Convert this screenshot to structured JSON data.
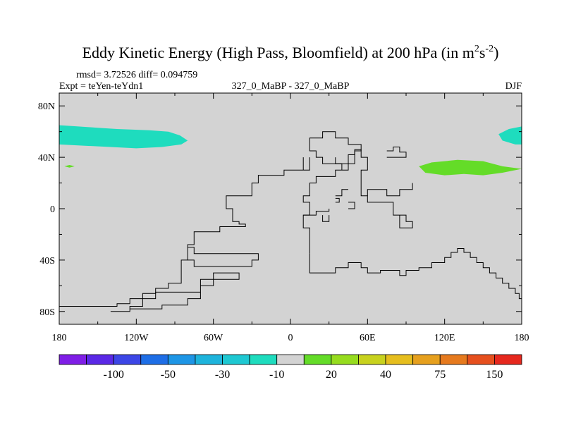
{
  "title": {
    "text": "Eddy Kinetic Energy (High Pass, Bloomfield) at 200 hPa (in m",
    "unit_sup1": "2",
    "unit_mid": "s",
    "unit_sup2": "-2",
    "close": ")"
  },
  "stats": "rmsd= 3.72526 diff= 0.094759",
  "expt": "Expt = teYen-teYdn1",
  "case": "327_0_MaBP - 327_0_MaBP",
  "season": "DJF",
  "map": {
    "land_color": "#d3d3d3",
    "coastline_color": "#000000",
    "lat_ticks": [
      {
        "label": "80N",
        "value": 80
      },
      {
        "label": "40N",
        "value": 40
      },
      {
        "label": "0",
        "value": 0
      },
      {
        "label": "40S",
        "value": -40
      },
      {
        "label": "80S",
        "value": -80
      }
    ],
    "lon_ticks": [
      {
        "label": "180",
        "value": -180
      },
      {
        "label": "120W",
        "value": -120
      },
      {
        "label": "60W",
        "value": -60
      },
      {
        "label": "0",
        "value": 0
      },
      {
        "label": "60E",
        "value": 60
      },
      {
        "label": "120E",
        "value": 120
      },
      {
        "label": "180",
        "value": 180
      }
    ],
    "fields": [
      {
        "name": "north-pacific-negative",
        "color": "#1edcbe",
        "points": [
          [
            -180,
            65
          ],
          [
            -165,
            64
          ],
          [
            -150,
            63
          ],
          [
            -135,
            62
          ],
          [
            -110,
            61
          ],
          [
            -95,
            60
          ],
          [
            -86,
            57
          ],
          [
            -80,
            53
          ],
          [
            -85,
            50
          ],
          [
            -100,
            48
          ],
          [
            -120,
            47
          ],
          [
            -140,
            48
          ],
          [
            -160,
            49
          ],
          [
            -180,
            50
          ]
        ]
      },
      {
        "name": "small-positive-spot",
        "color": "#64dc28",
        "points": [
          [
            -172,
            34
          ],
          [
            -168,
            33
          ],
          [
            -172,
            32
          ],
          [
            -176,
            33
          ]
        ]
      },
      {
        "name": "west-pacific-positive",
        "color": "#64dc28",
        "points": [
          [
            100,
            33
          ],
          [
            110,
            36
          ],
          [
            130,
            38
          ],
          [
            150,
            37
          ],
          [
            165,
            33
          ],
          [
            180,
            31
          ],
          [
            165,
            28
          ],
          [
            150,
            26
          ],
          [
            135,
            27
          ],
          [
            120,
            26
          ],
          [
            105,
            28
          ]
        ]
      },
      {
        "name": "east-edge-negative",
        "color": "#1edcbe",
        "points": [
          [
            180,
            64
          ],
          [
            170,
            62
          ],
          [
            162,
            58
          ],
          [
            165,
            53
          ],
          [
            175,
            50
          ],
          [
            180,
            50
          ]
        ]
      }
    ],
    "coastlines": [
      [
        [
          -180,
          -76
        ],
        [
          -135,
          -76
        ],
        [
          -135,
          -74
        ],
        [
          -125,
          -74
        ],
        [
          -125,
          -70
        ],
        [
          -115,
          -70
        ],
        [
          -115,
          -66
        ],
        [
          -105,
          -66
        ],
        [
          -105,
          -62
        ],
        [
          -95,
          -62
        ],
        [
          -95,
          -58
        ],
        [
          -85,
          -58
        ],
        [
          -85,
          -40
        ],
        [
          -80,
          -40
        ],
        [
          -80,
          -28
        ],
        [
          -75,
          -28
        ],
        [
          -75,
          -18
        ],
        [
          -55,
          -18
        ],
        [
          -55,
          -14
        ],
        [
          -35,
          -14
        ],
        [
          -35,
          -12
        ],
        [
          -40,
          -12
        ],
        [
          -40,
          -10
        ],
        [
          -45,
          -10
        ],
        [
          -45,
          0
        ],
        [
          -50,
          0
        ],
        [
          -50,
          10
        ],
        [
          -30,
          10
        ],
        [
          -30,
          20
        ],
        [
          -25,
          20
        ],
        [
          -25,
          26
        ],
        [
          -5,
          26
        ],
        [
          -5,
          30
        ],
        [
          15,
          30
        ],
        [
          15,
          40
        ]
      ],
      [
        [
          10,
          30
        ],
        [
          10,
          40
        ]
      ],
      [
        [
          -80,
          -40
        ],
        [
          -75,
          -40
        ],
        [
          -75,
          -45
        ],
        [
          -30,
          -45
        ],
        [
          -30,
          -40
        ],
        [
          -25,
          -40
        ],
        [
          -25,
          -35
        ],
        [
          -75,
          -35
        ],
        [
          -75,
          -30
        ],
        [
          -80,
          -30
        ]
      ],
      [
        [
          -140,
          -80
        ],
        [
          -125,
          -80
        ],
        [
          -125,
          -78
        ],
        [
          -100,
          -78
        ],
        [
          -100,
          -75
        ],
        [
          -80,
          -75
        ],
        [
          -80,
          -70
        ],
        [
          -70,
          -70
        ],
        [
          -70,
          -60
        ],
        [
          -60,
          -60
        ],
        [
          -60,
          -55
        ],
        [
          -40,
          -55
        ],
        [
          -40,
          -50
        ],
        [
          -60,
          -50
        ],
        [
          -60,
          -55
        ],
        [
          -70,
          -55
        ],
        [
          -70,
          -65
        ],
        [
          -105,
          -65
        ],
        [
          -105,
          -70
        ],
        [
          -115,
          -70
        ],
        [
          -115,
          -76
        ],
        [
          -125,
          -76
        ],
        [
          -125,
          -80
        ]
      ],
      [
        [
          15,
          -35
        ],
        [
          15,
          -50
        ],
        [
          35,
          -50
        ],
        [
          35,
          -46
        ],
        [
          45,
          -46
        ],
        [
          45,
          -42
        ],
        [
          55,
          -42
        ],
        [
          55,
          -46
        ],
        [
          60,
          -46
        ],
        [
          60,
          -50
        ],
        [
          70,
          -50
        ],
        [
          70,
          -48
        ],
        [
          85,
          -48
        ],
        [
          85,
          -52
        ],
        [
          90,
          -52
        ],
        [
          90,
          -48
        ],
        [
          100,
          -48
        ],
        [
          100,
          -46
        ],
        [
          110,
          -46
        ],
        [
          110,
          -42
        ],
        [
          120,
          -42
        ],
        [
          120,
          -38
        ],
        [
          125,
          -38
        ],
        [
          125,
          -34
        ],
        [
          130,
          -34
        ],
        [
          130,
          -31
        ],
        [
          135,
          -31
        ],
        [
          135,
          -34
        ],
        [
          140,
          -34
        ],
        [
          140,
          -38
        ],
        [
          145,
          -38
        ],
        [
          145,
          -42
        ],
        [
          150,
          -42
        ],
        [
          150,
          -46
        ],
        [
          155,
          -46
        ],
        [
          155,
          -50
        ],
        [
          160,
          -50
        ],
        [
          160,
          -54
        ],
        [
          165,
          -54
        ],
        [
          165,
          -58
        ],
        [
          170,
          -58
        ],
        [
          170,
          -62
        ],
        [
          175,
          -62
        ],
        [
          175,
          -66
        ],
        [
          178,
          -66
        ],
        [
          178,
          -70
        ],
        [
          180,
          -70
        ],
        [
          180,
          -80
        ]
      ],
      [
        [
          15,
          -35
        ],
        [
          15,
          -15
        ],
        [
          10,
          -15
        ],
        [
          10,
          -5
        ],
        [
          15,
          -5
        ],
        [
          15,
          0
        ],
        [
          15,
          5
        ],
        [
          10,
          5
        ],
        [
          10,
          10
        ],
        [
          15,
          10
        ],
        [
          15,
          20
        ],
        [
          20,
          20
        ],
        [
          20,
          25
        ],
        [
          35,
          25
        ],
        [
          35,
          30
        ],
        [
          45,
          30
        ],
        [
          45,
          35
        ],
        [
          50,
          35
        ],
        [
          50,
          45
        ],
        [
          55,
          45
        ],
        [
          55,
          50
        ],
        [
          45,
          50
        ],
        [
          45,
          55
        ],
        [
          35,
          55
        ],
        [
          35,
          60
        ],
        [
          25,
          60
        ],
        [
          25,
          55
        ],
        [
          15,
          55
        ],
        [
          15,
          45
        ],
        [
          20,
          45
        ],
        [
          20,
          40
        ],
        [
          25,
          40
        ],
        [
          25,
          35
        ],
        [
          40,
          35
        ],
        [
          40,
          30
        ]
      ],
      [
        [
          35,
          40
        ],
        [
          35,
          35
        ],
        [
          45,
          35
        ],
        [
          45,
          42
        ],
        [
          50,
          42
        ],
        [
          50,
          46
        ],
        [
          55,
          46
        ],
        [
          55,
          40
        ],
        [
          60,
          40
        ],
        [
          60,
          30
        ],
        [
          55,
          30
        ],
        [
          55,
          10
        ],
        [
          60,
          10
        ],
        [
          60,
          5
        ],
        [
          80,
          5
        ],
        [
          80,
          -5
        ],
        [
          90,
          -5
        ],
        [
          90,
          -10
        ],
        [
          95,
          -10
        ],
        [
          95,
          -15
        ],
        [
          85,
          -15
        ],
        [
          85,
          -5
        ]
      ],
      [
        [
          60,
          10
        ],
        [
          60,
          15
        ],
        [
          75,
          15
        ],
        [
          75,
          10
        ],
        [
          85,
          10
        ],
        [
          85,
          15
        ],
        [
          95,
          15
        ],
        [
          95,
          20
        ]
      ],
      [
        [
          75,
          45
        ],
        [
          80,
          45
        ],
        [
          80,
          48
        ],
        [
          85,
          48
        ],
        [
          85,
          44
        ],
        [
          90,
          44
        ],
        [
          90,
          40
        ],
        [
          75,
          40
        ]
      ],
      [
        [
          10,
          -5
        ],
        [
          20,
          -5
        ],
        [
          20,
          -2
        ],
        [
          30,
          -2
        ],
        [
          30,
          0
        ]
      ],
      [
        [
          25,
          -5
        ],
        [
          25,
          -10
        ],
        [
          30,
          -10
        ],
        [
          30,
          -5
        ]
      ],
      [
        [
          35,
          10
        ],
        [
          40,
          10
        ],
        [
          40,
          15
        ],
        [
          45,
          15
        ]
      ],
      [
        [
          45,
          0
        ],
        [
          50,
          0
        ],
        [
          50,
          5
        ],
        [
          45,
          5
        ]
      ],
      [
        [
          35,
          5
        ],
        [
          38,
          5
        ],
        [
          38,
          8
        ],
        [
          35,
          8
        ]
      ]
    ]
  },
  "colorbar": {
    "colors": [
      "#7f1ee6",
      "#5a28e6",
      "#3c46e6",
      "#1e6ee6",
      "#1e96e6",
      "#1eb4dc",
      "#1ec8d2",
      "#1edcbe",
      "#d3d3d3",
      "#64dc28",
      "#96dc1e",
      "#c8d21e",
      "#e6be1e",
      "#e6a01e",
      "#e67a1e",
      "#e6501e",
      "#e6281e"
    ],
    "labels": [
      {
        "text": "-100",
        "index": 2
      },
      {
        "text": "-50",
        "index": 4
      },
      {
        "text": "-30",
        "index": 6
      },
      {
        "text": "-10",
        "index": 8
      },
      {
        "text": "20",
        "index": 10
      },
      {
        "text": "40",
        "index": 12
      },
      {
        "text": "75",
        "index": 14
      },
      {
        "text": "150",
        "index": 16
      }
    ]
  }
}
